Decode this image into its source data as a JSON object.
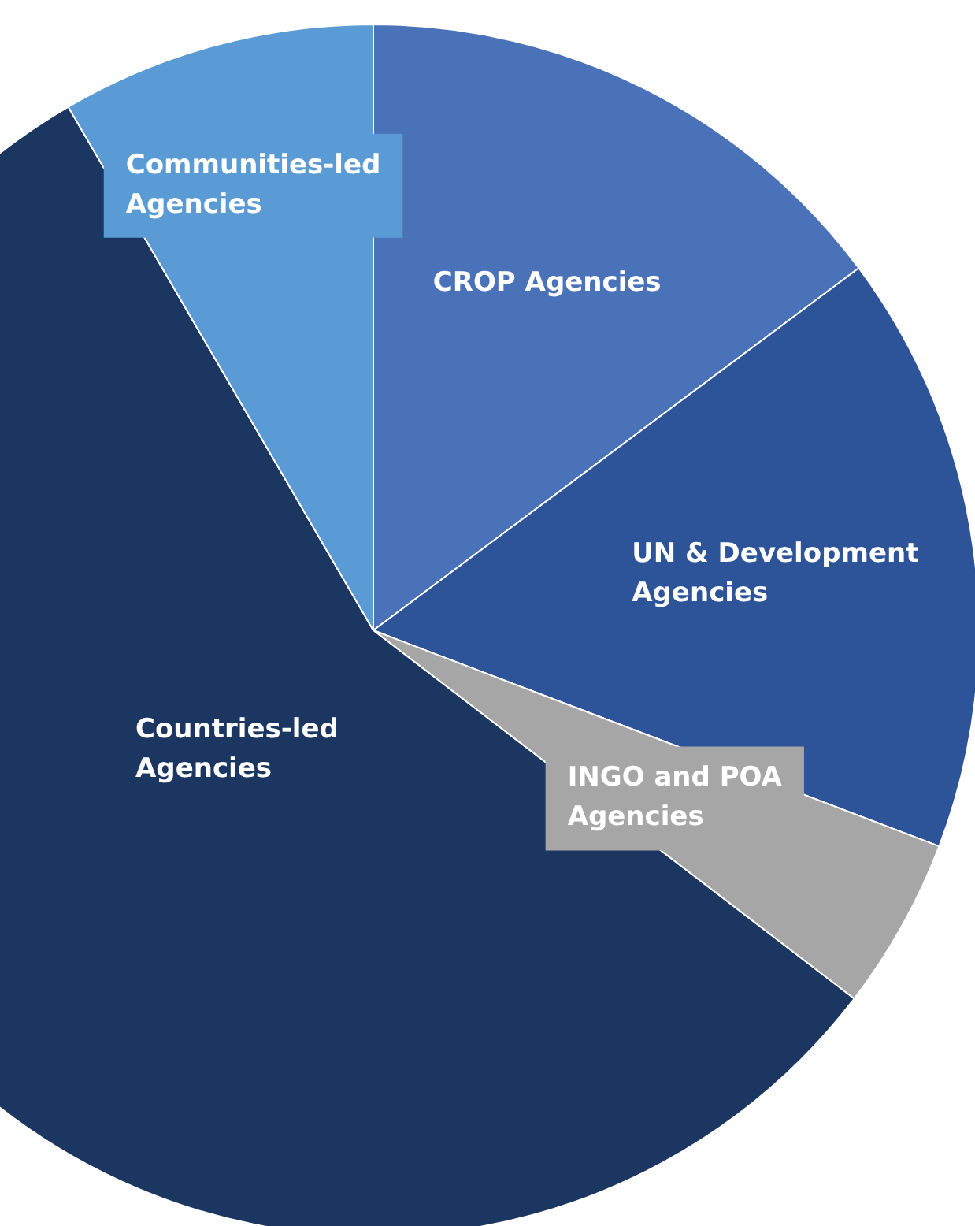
{
  "chart_data": {
    "type": "pie",
    "categories": [
      "CROP Agencies",
      "UN & Development Agencies",
      "INGO and POA Agencies",
      "Countries-led Agencies",
      "Communities-led Agencies"
    ],
    "values": [
      14.8,
      16.0,
      4.6,
      56.2,
      8.4
    ],
    "colors": [
      "#4a72b8",
      "#2d5499",
      "#a6a6a6",
      "#1b3660",
      "#5b9bd5"
    ],
    "legend": false
  }
}
